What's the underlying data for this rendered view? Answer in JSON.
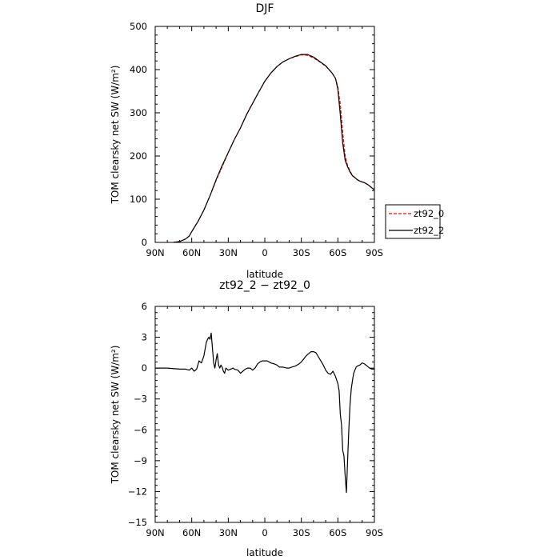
{
  "chart_data": [
    {
      "type": "line",
      "title": "DJF",
      "xlabel": "latitude",
      "ylabel": "TOM clearsky net SW (W/m²)",
      "x_tick_labels": [
        "90N",
        "60N",
        "30N",
        "0",
        "30S",
        "60S",
        "90S"
      ],
      "x_ticks": [
        90,
        60,
        30,
        0,
        -30,
        -60,
        -90
      ],
      "xlim": [
        90,
        -90
      ],
      "ylim": [
        0,
        500
      ],
      "y_ticks": [
        0,
        100,
        200,
        300,
        400,
        500
      ],
      "legend": "right",
      "series": [
        {
          "name": "zt92_0",
          "color": "#ff0000",
          "style": "dashed",
          "x": [
            75,
            70,
            65,
            62,
            60,
            55,
            50,
            45,
            40,
            35,
            30,
            25,
            20,
            15,
            10,
            5,
            0,
            -5,
            -10,
            -15,
            -20,
            -25,
            -30,
            -35,
            -40,
            -45,
            -50,
            -55,
            -58,
            -60,
            -62,
            -64,
            -66,
            -68,
            -70,
            -72,
            -74,
            -76,
            -78,
            -80,
            -82,
            -85,
            -88,
            -90
          ],
          "y": [
            0,
            2,
            8,
            15,
            25,
            48,
            75,
            108,
            143,
            175,
            208,
            238,
            265,
            296,
            322,
            348,
            373,
            392,
            407,
            418,
            425,
            430,
            434,
            433,
            427,
            418,
            408,
            393,
            380,
            360,
            320,
            255,
            200,
            178,
            165,
            155,
            150,
            145,
            142,
            140,
            138,
            133,
            126,
            122
          ]
        },
        {
          "name": "zt92_2",
          "color": "#000000",
          "style": "solid",
          "x": [
            75,
            70,
            65,
            62,
            60,
            55,
            50,
            45,
            40,
            35,
            30,
            25,
            20,
            15,
            10,
            5,
            0,
            -5,
            -10,
            -15,
            -20,
            -25,
            -30,
            -35,
            -40,
            -45,
            -50,
            -55,
            -58,
            -60,
            -62,
            -64,
            -66,
            -68,
            -70,
            -72,
            -74,
            -76,
            -78,
            -80,
            -82,
            -85,
            -88,
            -90
          ],
          "y": [
            0,
            2,
            8,
            15,
            25,
            48,
            75,
            108,
            145,
            178,
            208,
            238,
            265,
            296,
            322,
            348,
            373,
            392,
            407,
            418,
            425,
            431,
            435,
            435,
            429,
            419,
            409,
            393,
            380,
            355,
            295,
            230,
            190,
            175,
            163,
            154,
            150,
            145,
            142,
            140,
            138,
            133,
            126,
            122
          ]
        }
      ]
    },
    {
      "type": "line",
      "title": "zt92_2 − zt92_0",
      "xlabel": "latitude",
      "ylabel": "TOM clearsky net SW (W/m²)",
      "x_tick_labels": [
        "90N",
        "60N",
        "30N",
        "0",
        "30S",
        "60S",
        "90S"
      ],
      "x_ticks": [
        90,
        60,
        30,
        0,
        -30,
        -60,
        -90
      ],
      "xlim": [
        90,
        -90
      ],
      "ylim": [
        -15,
        6
      ],
      "y_ticks": [
        -15,
        -12,
        -9,
        -6,
        -3,
        0,
        3,
        6
      ],
      "series": [
        {
          "color": "#000000",
          "style": "solid",
          "x": [
            90,
            80,
            70,
            65,
            62,
            60,
            58,
            56,
            55,
            54,
            52,
            50,
            48,
            47,
            46,
            45,
            44,
            43,
            42,
            41,
            40,
            39,
            38,
            37,
            36,
            35,
            34,
            33,
            32,
            30,
            28,
            26,
            25,
            22,
            20,
            18,
            16,
            14,
            12,
            10,
            8,
            6,
            4,
            2,
            0,
            -2,
            -5,
            -8,
            -10,
            -12,
            -15,
            -18,
            -20,
            -22,
            -25,
            -28,
            -30,
            -32,
            -34,
            -36,
            -38,
            -40,
            -42,
            -44,
            -46,
            -48,
            -50,
            -52,
            -54,
            -56,
            -58,
            -60,
            -61,
            -62,
            -63,
            -64,
            -65,
            -66,
            -67,
            -68,
            -69,
            -70,
            -71,
            -72,
            -73,
            -74,
            -75,
            -76,
            -78,
            -80,
            -82,
            -84,
            -86,
            -88,
            -90
          ],
          "y": [
            0,
            0,
            -0.1,
            -0.1,
            -0.2,
            0,
            -0.3,
            -0.1,
            0.3,
            0.7,
            0.5,
            1.2,
            2.5,
            2.8,
            3.0,
            2.8,
            3.4,
            2.0,
            0.5,
            0,
            0.8,
            1.4,
            0.3,
            0,
            0.3,
            0.1,
            -0.3,
            -0.5,
            0,
            -0.2,
            -0.1,
            0,
            -0.1,
            -0.2,
            -0.5,
            -0.3,
            -0.1,
            0,
            0,
            -0.2,
            0,
            0.4,
            0.6,
            0.7,
            0.7,
            0.7,
            0.5,
            0.4,
            0.3,
            0.1,
            0.1,
            0,
            0,
            0.1,
            0.2,
            0.4,
            0.6,
            0.9,
            1.2,
            1.4,
            1.6,
            1.6,
            1.5,
            1.1,
            0.7,
            0.3,
            -0.2,
            -0.5,
            -0.6,
            -0.3,
            -0.8,
            -1.5,
            -2.2,
            -4.5,
            -5.5,
            -8.0,
            -8.5,
            -10.5,
            -12.1,
            -9.0,
            -6.0,
            -3.5,
            -2.0,
            -1.2,
            -0.5,
            -0.2,
            0.1,
            0.2,
            0.3,
            0.5,
            0.4,
            0.2,
            0.0,
            -0.1,
            -0.1
          ]
        }
      ]
    }
  ]
}
